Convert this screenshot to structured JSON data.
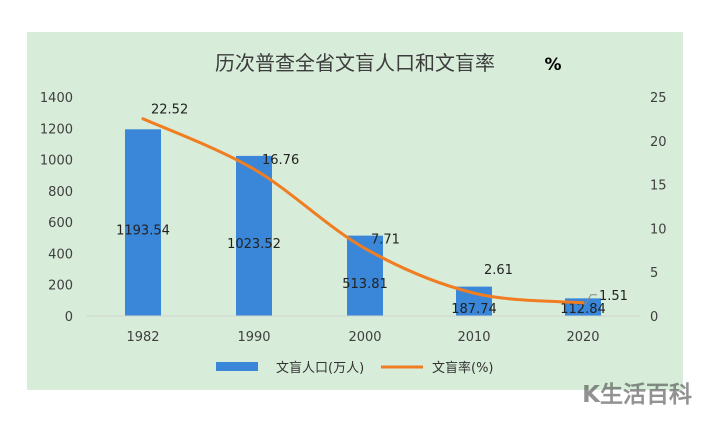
{
  "chart_data": {
    "type": "bar",
    "title": "历次普查全省文盲人口和文盲率",
    "right_unit": "%",
    "categories": [
      "1982",
      "1990",
      "2000",
      "2010",
      "2020"
    ],
    "series": [
      {
        "name": "文盲人口(万人)",
        "kind": "bar",
        "axis": "left",
        "color": "#3a86d8",
        "values": [
          1193.54,
          1023.52,
          513.81,
          187.74,
          112.84
        ],
        "labels": [
          "1193.54",
          "1023.52",
          "513.81",
          "187.74",
          "112.84"
        ]
      },
      {
        "name": "文盲率(%)",
        "kind": "line",
        "axis": "right",
        "color": "#f07d22",
        "values": [
          22.52,
          16.76,
          7.71,
          2.61,
          1.51
        ],
        "labels": [
          "22.52",
          "16.76",
          "7.71",
          "2.61",
          "1.51"
        ]
      }
    ],
    "y_left": {
      "min": 0,
      "max": 1400,
      "ticks": [
        "0",
        "200",
        "400",
        "600",
        "800",
        "1000",
        "1200",
        "1400"
      ]
    },
    "y_right": {
      "min": 0,
      "max": 25,
      "ticks": [
        "0",
        "5",
        "10",
        "15",
        "20",
        "25"
      ]
    },
    "grid": false,
    "legend_position": "bottom"
  },
  "watermark": "K生活百科"
}
